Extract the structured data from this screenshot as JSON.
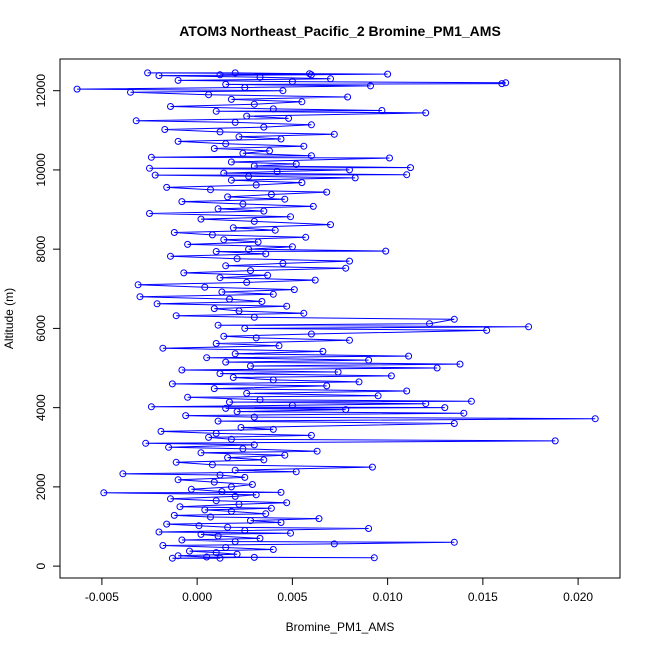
{
  "chart_data": {
    "type": "scatter",
    "title": "ATOM3 Northeast_Pacific_2 Bromine_PM1_AMS",
    "xlabel": "Bromine_PM1_AMS",
    "ylabel": "Altitude (m)",
    "xlim": [
      -0.0072,
      0.0222
    ],
    "ylim": [
      -300,
      12800
    ],
    "xticks": [
      -0.005,
      0.0,
      0.005,
      0.01,
      0.015,
      0.02
    ],
    "xtick_labels": [
      "-0.005",
      "0.000",
      "0.005",
      "0.010",
      "0.015",
      "0.020"
    ],
    "yticks": [
      0,
      2000,
      4000,
      6000,
      8000,
      10000,
      12000
    ],
    "ytick_labels": [
      "0",
      "2000",
      "4000",
      "6000",
      "8000",
      "10000",
      "12000"
    ],
    "grid": false,
    "series": [
      {
        "color": "#0000ff",
        "points": [
          [
            0.0012,
            200
          ],
          [
            -0.0013,
            200
          ],
          [
            0.003,
            220
          ],
          [
            0.0093,
            210
          ],
          [
            0.0005,
            230
          ],
          [
            -0.001,
            260
          ],
          [
            0.0021,
            300
          ],
          [
            0.001,
            340
          ],
          [
            -0.0004,
            380
          ],
          [
            0.004,
            420
          ],
          [
            0.0015,
            470
          ],
          [
            -0.0018,
            520
          ],
          [
            0.0072,
            560
          ],
          [
            0.0135,
            600
          ],
          [
            0.002,
            620
          ],
          [
            -0.0008,
            660
          ],
          [
            0.0033,
            700
          ],
          [
            0.0011,
            760
          ],
          [
            0.0002,
            800
          ],
          [
            0.0049,
            830
          ],
          [
            -0.002,
            860
          ],
          [
            0.0025,
            900
          ],
          [
            0.009,
            950
          ],
          [
            0.0016,
            980
          ],
          [
            0.0001,
            1020
          ],
          [
            -0.0016,
            1060
          ],
          [
            0.0044,
            1100
          ],
          [
            0.0028,
            1150
          ],
          [
            0.0064,
            1200
          ],
          [
            0.0007,
            1240
          ],
          [
            -0.0012,
            1280
          ],
          [
            0.0036,
            1320
          ],
          [
            0.0018,
            1380
          ],
          [
            0.0004,
            1420
          ],
          [
            0.0039,
            1460
          ],
          [
            -0.0009,
            1500
          ],
          [
            0.0022,
            1560
          ],
          [
            0.0047,
            1600
          ],
          [
            0.001,
            1650
          ],
          [
            -0.0014,
            1700
          ],
          [
            0.002,
            1760
          ],
          [
            0.0031,
            1800
          ],
          [
            -0.0049,
            1850
          ],
          [
            0.0044,
            1860
          ],
          [
            0.0013,
            1880
          ],
          [
            -0.0003,
            1940
          ],
          [
            0.0018,
            2000
          ],
          [
            0.0029,
            2060
          ],
          [
            0.0009,
            2120
          ],
          [
            -0.001,
            2180
          ],
          [
            0.0025,
            2240
          ],
          [
            0.0012,
            2300
          ],
          [
            -0.0039,
            2330
          ],
          [
            0.0052,
            2380
          ],
          [
            0.002,
            2420
          ],
          [
            0.0092,
            2500
          ],
          [
            0.0008,
            2560
          ],
          [
            -0.0011,
            2620
          ],
          [
            0.0035,
            2680
          ],
          [
            0.0016,
            2740
          ],
          [
            0.0046,
            2800
          ],
          [
            0.0002,
            2860
          ],
          [
            0.0063,
            2900
          ],
          [
            0.0024,
            2960
          ],
          [
            -0.0015,
            3000
          ],
          [
            0.003,
            3060
          ],
          [
            -0.0027,
            3100
          ],
          [
            0.0188,
            3160
          ],
          [
            0.0018,
            3200
          ],
          [
            0.0006,
            3250
          ],
          [
            0.006,
            3300
          ],
          [
            0.001,
            3350
          ],
          [
            -0.0019,
            3400
          ],
          [
            0.004,
            3450
          ],
          [
            0.0023,
            3500
          ],
          [
            0.0135,
            3600
          ],
          [
            0.0011,
            3660
          ],
          [
            0.0209,
            3720
          ],
          [
            0.003,
            3760
          ],
          [
            -0.0006,
            3800
          ],
          [
            0.014,
            3860
          ],
          [
            0.0021,
            3900
          ],
          [
            0.0078,
            3950
          ],
          [
            0.0015,
            3980
          ],
          [
            0.013,
            4000
          ],
          [
            -0.0024,
            4020
          ],
          [
            0.005,
            4060
          ],
          [
            0.012,
            4100
          ],
          [
            0.0017,
            4140
          ],
          [
            0.0144,
            4160
          ],
          [
            0.0033,
            4200
          ],
          [
            -0.0005,
            4260
          ],
          [
            0.0095,
            4300
          ],
          [
            0.0026,
            4360
          ],
          [
            0.011,
            4420
          ],
          [
            0.0009,
            4480
          ],
          [
            0.0068,
            4550
          ],
          [
            -0.0013,
            4600
          ],
          [
            0.0085,
            4650
          ],
          [
            0.004,
            4700
          ],
          [
            0.0019,
            4760
          ],
          [
            0.0102,
            4800
          ],
          [
            0.0012,
            4860
          ],
          [
            0.0074,
            4900
          ],
          [
            -0.0008,
            4950
          ],
          [
            0.0126,
            5000
          ],
          [
            0.0028,
            5050
          ],
          [
            0.0138,
            5100
          ],
          [
            0.0015,
            5150
          ],
          [
            0.009,
            5200
          ],
          [
            0.0005,
            5260
          ],
          [
            0.0111,
            5300
          ],
          [
            0.002,
            5360
          ],
          [
            0.0066,
            5420
          ],
          [
            -0.0018,
            5500
          ],
          [
            0.0043,
            5560
          ],
          [
            0.001,
            5620
          ],
          [
            0.008,
            5700
          ],
          [
            0.0031,
            5760
          ],
          [
            0.0014,
            5800
          ],
          [
            0.006,
            5860
          ],
          [
            0.0152,
            5950
          ],
          [
            0.0025,
            6000
          ],
          [
            0.0174,
            6040
          ],
          [
            0.0011,
            6080
          ],
          [
            0.0122,
            6120
          ],
          [
            0.0135,
            6230
          ],
          [
            0.003,
            6280
          ],
          [
            -0.0011,
            6320
          ],
          [
            0.0056,
            6380
          ],
          [
            0.0022,
            6440
          ],
          [
            0.0009,
            6500
          ],
          [
            0.0047,
            6560
          ],
          [
            -0.0021,
            6620
          ],
          [
            0.0034,
            6680
          ],
          [
            0.0017,
            6740
          ],
          [
            -0.003,
            6800
          ],
          [
            0.004,
            6860
          ],
          [
            0.0013,
            6920
          ],
          [
            0.0051,
            6980
          ],
          [
            0.0004,
            7040
          ],
          [
            -0.0031,
            7100
          ],
          [
            0.0026,
            7160
          ],
          [
            0.0062,
            7220
          ],
          [
            0.0012,
            7280
          ],
          [
            0.0037,
            7340
          ],
          [
            -0.0007,
            7400
          ],
          [
            0.0028,
            7460
          ],
          [
            0.0078,
            7520
          ],
          [
            0.0015,
            7580
          ],
          [
            0.0045,
            7640
          ],
          [
            0.008,
            7700
          ],
          [
            0.0021,
            7760
          ],
          [
            -0.0014,
            7820
          ],
          [
            0.0036,
            7880
          ],
          [
            0.001,
            7940
          ],
          [
            0.0099,
            7950
          ],
          [
            0.0027,
            8000
          ],
          [
            0.005,
            8060
          ],
          [
            -0.0005,
            8120
          ],
          [
            0.0032,
            8180
          ],
          [
            0.0014,
            8240
          ],
          [
            0.0057,
            8300
          ],
          [
            0.0008,
            8360
          ],
          [
            -0.0012,
            8420
          ],
          [
            0.0041,
            8480
          ],
          [
            0.0019,
            8540
          ],
          [
            0.007,
            8620
          ],
          [
            0.003,
            8700
          ],
          [
            0.0002,
            8760
          ],
          [
            0.0049,
            8820
          ],
          [
            -0.0025,
            8900
          ],
          [
            0.0035,
            8960
          ],
          [
            0.0011,
            9020
          ],
          [
            0.0061,
            9080
          ],
          [
            0.0024,
            9140
          ],
          [
            -0.0008,
            9200
          ],
          [
            0.0046,
            9260
          ],
          [
            0.0016,
            9320
          ],
          [
            0.0039,
            9380
          ],
          [
            0.0068,
            9440
          ],
          [
            0.0007,
            9500
          ],
          [
            -0.0016,
            9560
          ],
          [
            0.0031,
            9620
          ],
          [
            0.0055,
            9680
          ],
          [
            0.0018,
            9740
          ],
          [
            0.0083,
            9800
          ],
          [
            0.0027,
            9840
          ],
          [
            -0.0022,
            9870
          ],
          [
            0.011,
            9880
          ],
          [
            0.0014,
            9920
          ],
          [
            0.0042,
            9960
          ],
          [
            0.008,
            10000
          ],
          [
            -0.0025,
            10040
          ],
          [
            0.0112,
            10060
          ],
          [
            0.003,
            10100
          ],
          [
            0.0052,
            10150
          ],
          [
            0.0018,
            10200
          ],
          [
            0.0101,
            10300
          ],
          [
            -0.0024,
            10320
          ],
          [
            0.006,
            10360
          ],
          [
            0.0024,
            10420
          ],
          [
            0.0038,
            10480
          ],
          [
            0.0009,
            10540
          ],
          [
            0.0056,
            10600
          ],
          [
            0.0015,
            10660
          ],
          [
            -0.001,
            10720
          ],
          [
            0.0044,
            10780
          ],
          [
            0.0022,
            10840
          ],
          [
            0.0072,
            10900
          ],
          [
            0.0012,
            10960
          ],
          [
            -0.0017,
            11020
          ],
          [
            0.0035,
            11080
          ],
          [
            0.006,
            11140
          ],
          [
            0.002,
            11200
          ],
          [
            -0.0032,
            11240
          ],
          [
            0.0048,
            11300
          ],
          [
            0.0026,
            11360
          ],
          [
            0.012,
            11440
          ],
          [
            0.001,
            11480
          ],
          [
            0.0097,
            11500
          ],
          [
            0.004,
            11540
          ],
          [
            -0.0014,
            11600
          ],
          [
            0.003,
            11660
          ],
          [
            0.0055,
            11720
          ],
          [
            0.0018,
            11780
          ],
          [
            0.0079,
            11840
          ],
          [
            0.0006,
            11900
          ],
          [
            -0.0035,
            11960
          ],
          [
            0.0045,
            12000
          ],
          [
            -0.0063,
            12040
          ],
          [
            0.0025,
            12080
          ],
          [
            0.0091,
            12120
          ],
          [
            0.0015,
            12160
          ],
          [
            0.016,
            12180
          ],
          [
            0.0162,
            12200
          ],
          [
            0.005,
            12230
          ],
          [
            -0.001,
            12260
          ],
          [
            0.007,
            12300
          ],
          [
            0.0033,
            12340
          ],
          [
            -0.002,
            12380
          ],
          [
            0.006,
            12400
          ],
          [
            0.01,
            12420
          ],
          [
            -0.0026,
            12450
          ],
          [
            0.002,
            12450
          ],
          [
            0.0059,
            12430
          ],
          [
            0.0012,
            12400
          ]
        ]
      }
    ]
  }
}
